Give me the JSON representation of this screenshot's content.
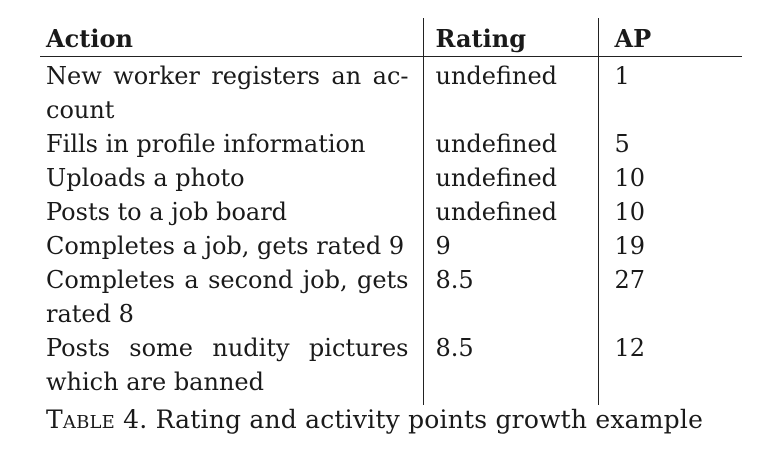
{
  "table": {
    "headers": {
      "action": "Action",
      "rating": "Rating",
      "ap": "AP"
    },
    "rows": [
      {
        "action": "New worker registers an ac­count",
        "rating": "undefined",
        "ap": "1"
      },
      {
        "action": "Fills in profile information",
        "rating": "undefined",
        "ap": "5"
      },
      {
        "action": "Uploads a photo",
        "rating": "undefined",
        "ap": "10"
      },
      {
        "action": "Posts to a job board",
        "rating": "undefined",
        "ap": "10"
      },
      {
        "action": "Completes a job, gets rated 9",
        "rating": "9",
        "ap": "19"
      },
      {
        "action": "Completes a second job, gets rated 8",
        "rating": "8.5",
        "ap": "27"
      },
      {
        "action": "Posts some nudity pictures which are banned",
        "rating": "8.5",
        "ap": "12"
      }
    ]
  },
  "caption": {
    "label": "Table 4.",
    "text": "Rating and activity points growth example"
  }
}
